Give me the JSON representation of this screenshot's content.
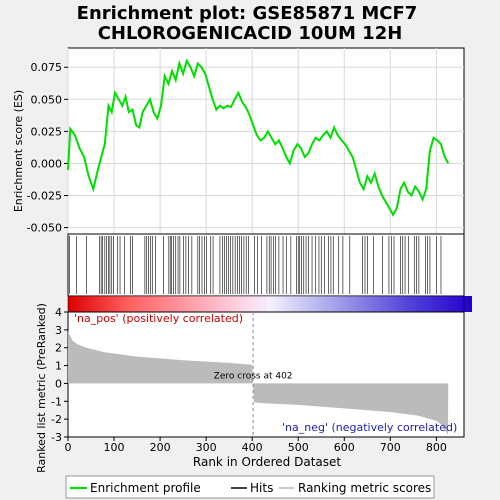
{
  "chart_data": {
    "type": "line",
    "title_line1": "Enrichment plot: GSE85871 MCF7",
    "title_line2": "CHLOROGENICACID 10UM 12H",
    "top_panel": {
      "ylabel": "Enrichment score (ES)",
      "ylim": [
        -0.055,
        0.09
      ],
      "yticks": [
        "0.075",
        "0.050",
        "0.025",
        "0.000",
        "-0.025",
        "-0.050"
      ],
      "ytick_values": [
        0.075,
        0.05,
        0.025,
        0.0,
        -0.025,
        -0.05
      ],
      "grid": true,
      "series": [
        {
          "name": "Enrichment profile",
          "color": "#00dd00",
          "x": [
            0,
            5,
            15,
            25,
            35,
            45,
            55,
            65,
            72,
            80,
            88,
            95,
            102,
            110,
            118,
            125,
            132,
            140,
            148,
            155,
            162,
            170,
            178,
            186,
            194,
            202,
            210,
            218,
            226,
            234,
            242,
            250,
            258,
            266,
            274,
            282,
            290,
            298,
            306,
            314,
            322,
            330,
            338,
            346,
            354,
            362,
            370,
            378,
            386,
            394,
            402,
            410,
            418,
            426,
            434,
            442,
            450,
            458,
            466,
            474,
            482,
            490,
            498,
            506,
            514,
            522,
            530,
            538,
            546,
            554,
            562,
            570,
            578,
            586,
            594,
            602,
            610,
            618,
            626,
            634,
            642,
            650,
            658,
            666,
            674,
            682,
            690,
            698,
            706,
            714,
            722,
            730,
            738,
            746,
            754,
            762,
            770,
            778,
            786,
            794,
            802,
            810,
            818,
            826
          ],
          "y": [
            -0.005,
            0.027,
            0.022,
            0.012,
            0.005,
            -0.01,
            -0.02,
            -0.005,
            0.005,
            0.015,
            0.045,
            0.04,
            0.055,
            0.05,
            0.045,
            0.052,
            0.04,
            0.042,
            0.03,
            0.028,
            0.04,
            0.045,
            0.05,
            0.04,
            0.035,
            0.045,
            0.068,
            0.062,
            0.072,
            0.065,
            0.078,
            0.07,
            0.08,
            0.075,
            0.068,
            0.078,
            0.075,
            0.07,
            0.06,
            0.05,
            0.042,
            0.045,
            0.043,
            0.045,
            0.044,
            0.05,
            0.055,
            0.048,
            0.044,
            0.038,
            0.03,
            0.022,
            0.018,
            0.02,
            0.025,
            0.02,
            0.015,
            0.018,
            0.012,
            0.005,
            0.0,
            0.01,
            0.015,
            0.012,
            0.005,
            0.008,
            0.015,
            0.02,
            0.018,
            0.022,
            0.025,
            0.02,
            0.028,
            0.022,
            0.018,
            0.015,
            0.01,
            0.005,
            -0.005,
            -0.015,
            -0.02,
            -0.01,
            -0.015,
            -0.008,
            -0.018,
            -0.025,
            -0.03,
            -0.035,
            -0.04,
            -0.035,
            -0.02,
            -0.015,
            -0.022,
            -0.025,
            -0.018,
            -0.022,
            -0.028,
            -0.02,
            0.01,
            0.02,
            0.018,
            0.015,
            0.005,
            0.0
          ]
        }
      ]
    },
    "hits": {
      "description": "gene set hit positions (rank)",
      "x": [
        3,
        18,
        40,
        68,
        72,
        75,
        80,
        84,
        88,
        91,
        95,
        99,
        108,
        113,
        123,
        136,
        140,
        167,
        171,
        175,
        179,
        183,
        190,
        207,
        219,
        222,
        225,
        229,
        234,
        239,
        243,
        251,
        256,
        262,
        269,
        282,
        286,
        291,
        296,
        301,
        310,
        315,
        330,
        336,
        340,
        344,
        349,
        353,
        358,
        363,
        368,
        372,
        377,
        382,
        387,
        392,
        405,
        412,
        420,
        432,
        437,
        441,
        446,
        451,
        458,
        467,
        474,
        484,
        496,
        500,
        503,
        507,
        512,
        517,
        522,
        530,
        538,
        545,
        550,
        557,
        566,
        571,
        576,
        588,
        597,
        612,
        640,
        645,
        650,
        663,
        683,
        697,
        703,
        708,
        722,
        727,
        732,
        739,
        752,
        757,
        762,
        776,
        781,
        786,
        800,
        810
      ]
    },
    "bottom_panel": {
      "ylabel": "Ranked list metric (PreRanked)",
      "xlabel": "Rank in Ordered Dataset",
      "ylim": [
        -3,
        4
      ],
      "yticks": [
        "4",
        "3",
        "2",
        "1",
        "0",
        "-1",
        "-2",
        "-3"
      ],
      "ytick_values": [
        4,
        3,
        2,
        1,
        0,
        -1,
        -2,
        -3
      ],
      "xlim": [
        0,
        860
      ],
      "xticks": [
        "0",
        "100",
        "200",
        "300",
        "400",
        "500",
        "600",
        "700",
        "800"
      ],
      "xtick_values": [
        0,
        100,
        200,
        300,
        400,
        500,
        600,
        700,
        800
      ],
      "zero_cross": 402,
      "zero_cross_label": "Zero cross at 402",
      "pos_label": "'na_pos' (positively correlated)",
      "neg_label": "'na_neg' (negatively correlated)",
      "metric_x": [
        0,
        10,
        20,
        40,
        80,
        150,
        250,
        350,
        400,
        402,
        404,
        420,
        500,
        600,
        700,
        760,
        800,
        815,
        825
      ],
      "metric_y": [
        2.9,
        2.4,
        2.2,
        2.0,
        1.75,
        1.5,
        1.3,
        1.15,
        1.05,
        0.0,
        -1.05,
        -1.1,
        -1.2,
        -1.4,
        -1.6,
        -1.8,
        -2.1,
        -2.4,
        -2.9
      ],
      "max_rank": 826
    },
    "legend": {
      "entries": [
        {
          "name": "Enrichment profile",
          "color": "#00dd00"
        },
        {
          "name": "Hits",
          "color": "#000000"
        },
        {
          "name": "Ranking metric scores",
          "color": "#c8c8c8"
        }
      ]
    },
    "colors": {
      "profile": "#00dd00",
      "hits": "#000000",
      "metric_fill": "#bbbbbb",
      "pos_label": "#cc0000",
      "neg_label": "#2222aa",
      "gradient_pos": "#dd0000",
      "gradient_neg": "#2200cc"
    }
  }
}
